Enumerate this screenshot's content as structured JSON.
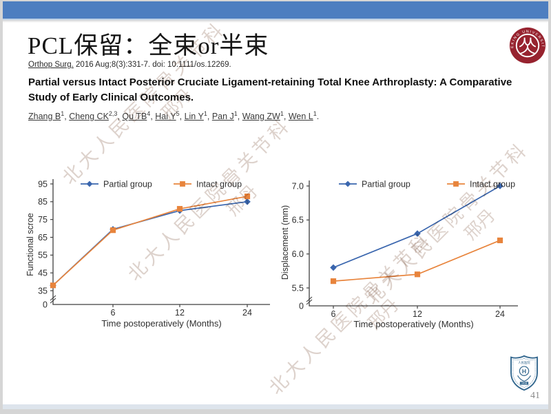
{
  "slide": {
    "title": "PCL保留：全束or半束",
    "citation": {
      "journal": "Orthop Surg.",
      "rest": " 2016 Aug;8(3):331-7. doi: 10.1111/os.12269."
    },
    "paper_title": "Partial versus Intact Posterior Cruciate Ligament-retaining Total Knee Arthroplasty: A Comparative Study of Early Clinical Outcomes.",
    "authors": [
      {
        "name": "Zhang B",
        "sup": "1"
      },
      {
        "name": "Cheng CK",
        "sup": "2,3"
      },
      {
        "name": "Qu TB",
        "sup": "4"
      },
      {
        "name": "Hai Y",
        "sup": "5"
      },
      {
        "name": "Lin Y",
        "sup": "1"
      },
      {
        "name": "Pan J",
        "sup": "1"
      },
      {
        "name": "Wang ZW",
        "sup": "1"
      },
      {
        "name": "Wen L",
        "sup": "1"
      }
    ],
    "watermark": {
      "text": "北大人民医院骨关节科",
      "signature": "邢丹"
    },
    "logos": {
      "top_right": {
        "name": "peking-university-seal",
        "ring_text": "PEKING UNIVERSITY",
        "color": "#97232f"
      },
      "bottom_right": {
        "name": "peoples-hospital-shield",
        "top_text": "人民医院",
        "year": "1918",
        "color": "#34688f"
      }
    },
    "page_number": "41",
    "colors": {
      "header_bar": "#4d7ec0",
      "footer_bar": "#dde4ec",
      "series_blue": "#3a66ae",
      "series_orange": "#e8843c"
    }
  },
  "chart_data": [
    {
      "type": "line",
      "title": "",
      "categories": [
        "",
        "6",
        "12",
        "24"
      ],
      "series": [
        {
          "name": "Partial group",
          "values": [
            38,
            69.5,
            80,
            85
          ],
          "color": "#3a66ae",
          "marker": "diamond"
        },
        {
          "name": "Intact group",
          "values": [
            38,
            69,
            81,
            88
          ],
          "color": "#e8843c",
          "marker": "square"
        }
      ],
      "xlabel": "Time postoperatively (Months)",
      "ylabel": "Functional scroe",
      "ylim": [
        35,
        95
      ],
      "yticks": [
        35,
        45,
        55,
        65,
        75,
        85,
        95
      ],
      "ytick_decimals": 0,
      "zero_tick_label": "0",
      "axis_break": true,
      "grid": false,
      "legend_position": "top"
    },
    {
      "type": "line",
      "title": "",
      "categories": [
        "6",
        "12",
        "24"
      ],
      "series": [
        {
          "name": "Partial group",
          "values": [
            5.8,
            6.3,
            7.0
          ],
          "color": "#3a66ae",
          "marker": "diamond"
        },
        {
          "name": "Intact group",
          "values": [
            5.6,
            5.7,
            6.2
          ],
          "color": "#e8843c",
          "marker": "square"
        }
      ],
      "xlabel": "Time postoperatively (Months)",
      "ylabel": "Displacement (mm)",
      "ylim": [
        5.5,
        7.0
      ],
      "yticks": [
        5.5,
        6.0,
        6.5,
        7.0
      ],
      "ytick_decimals": 1,
      "zero_tick_label": "0",
      "axis_break": true,
      "grid": false,
      "legend_position": "top"
    }
  ]
}
